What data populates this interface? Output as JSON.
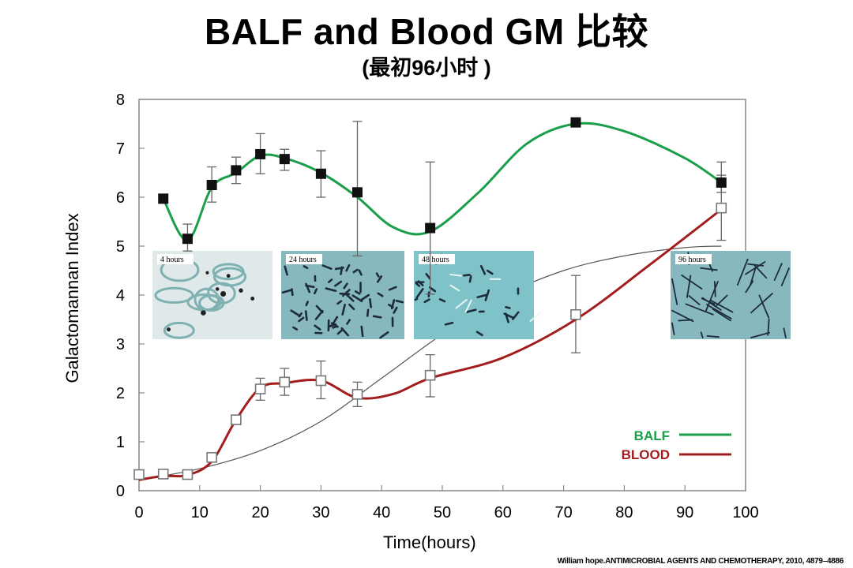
{
  "chart_data": {
    "type": "line",
    "title": "BALF and Blood  GM 比较",
    "subtitle": "(最初96小时  )",
    "xlabel": "Time(hours)",
    "ylabel": "Galactomannan Index",
    "xlim": [
      0,
      100
    ],
    "ylim": [
      0,
      8
    ],
    "xticks": [
      "0",
      "10",
      "20",
      "30",
      "40",
      "50",
      "60",
      "70",
      "80",
      "90",
      "100"
    ],
    "yticks": [
      "0",
      "1",
      "2",
      "3",
      "4",
      "5",
      "6",
      "7",
      "8"
    ],
    "grid": false,
    "legend_position": "bottom-right",
    "series": [
      {
        "name": "BALF",
        "color": "#1a9e4a",
        "marker": "filled-square",
        "x": [
          4,
          8,
          12,
          16,
          20,
          24,
          30,
          36,
          48,
          72,
          96
        ],
        "y": [
          5.97,
          5.15,
          6.25,
          6.55,
          6.88,
          6.78,
          6.48,
          6.1,
          5.37,
          7.53,
          6.3
        ],
        "err_low": [
          5.97,
          4.9,
          5.9,
          6.28,
          6.48,
          6.55,
          6.0,
          4.8,
          4.02,
          7.53,
          6.1
        ],
        "err_high": [
          5.97,
          5.45,
          6.62,
          6.82,
          7.3,
          6.98,
          6.95,
          7.55,
          6.72,
          7.53,
          6.72
        ],
        "fit_curve": [
          [
            4,
            5.97
          ],
          [
            8,
            5.12
          ],
          [
            12,
            6.2
          ],
          [
            16,
            6.5
          ],
          [
            20,
            6.85
          ],
          [
            24,
            6.8
          ],
          [
            30,
            6.5
          ],
          [
            36,
            6.0
          ],
          [
            42,
            5.38
          ],
          [
            48,
            5.3
          ],
          [
            56,
            6.1
          ],
          [
            64,
            7.1
          ],
          [
            72,
            7.5
          ],
          [
            80,
            7.35
          ],
          [
            90,
            6.8
          ],
          [
            96,
            6.3
          ]
        ]
      },
      {
        "name": "BLOOD",
        "color": "#a31d1d",
        "marker": "open-square",
        "x": [
          0,
          4,
          8,
          12,
          16,
          20,
          24,
          30,
          36,
          48,
          72,
          96
        ],
        "y": [
          0.33,
          0.34,
          0.33,
          0.68,
          1.45,
          2.08,
          2.22,
          2.25,
          1.97,
          2.36,
          3.6,
          5.78
        ],
        "err_low": [
          0.33,
          0.34,
          0.33,
          0.68,
          1.45,
          1.85,
          1.95,
          1.88,
          1.72,
          1.92,
          2.82,
          5.12
        ],
        "err_high": [
          0.33,
          0.34,
          0.33,
          0.68,
          1.45,
          2.3,
          2.5,
          2.65,
          2.22,
          2.78,
          4.4,
          6.45
        ],
        "fit_curve": [
          [
            0,
            0.22
          ],
          [
            4,
            0.3
          ],
          [
            8,
            0.32
          ],
          [
            12,
            0.6
          ],
          [
            16,
            1.45
          ],
          [
            20,
            2.1
          ],
          [
            24,
            2.2
          ],
          [
            30,
            2.25
          ],
          [
            36,
            1.9
          ],
          [
            42,
            1.98
          ],
          [
            48,
            2.3
          ],
          [
            60,
            2.72
          ],
          [
            72,
            3.5
          ],
          [
            84,
            4.6
          ],
          [
            96,
            5.75
          ]
        ]
      }
    ],
    "model_curve": {
      "color": "#555555",
      "points": [
        [
          0,
          0.22
        ],
        [
          10,
          0.45
        ],
        [
          20,
          0.82
        ],
        [
          30,
          1.42
        ],
        [
          40,
          2.3
        ],
        [
          50,
          3.2
        ],
        [
          60,
          3.98
        ],
        [
          70,
          4.5
        ],
        [
          80,
          4.8
        ],
        [
          90,
          4.97
        ],
        [
          96,
          5.0
        ]
      ]
    },
    "insets": [
      {
        "label": "4 hours",
        "style": "light"
      },
      {
        "label": "24 hours",
        "style": "dense"
      },
      {
        "label": "48 hours",
        "style": "medium"
      },
      {
        "label": "96 hours",
        "style": "hyphae"
      }
    ]
  },
  "citation": "William hope.ANTIMICROBIAL AGENTS AND CHEMOTHERAPY,  2010, 4879–4886"
}
